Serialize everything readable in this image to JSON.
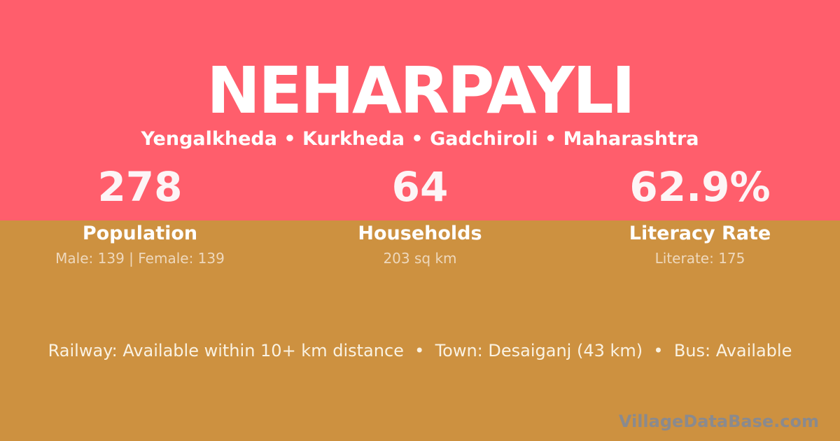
{
  "theme": {
    "top_band_color": "#ff5e6c",
    "bottom_band_color": "#cd9140",
    "title_color": "#ffffff",
    "number_color": "#fdf5f6",
    "label_color": "#fefefe",
    "muted_color": "rgba(255,255,255,0.65)",
    "footer_color": "#faf2e2",
    "watermark_color": "#8a8a8e"
  },
  "header": {
    "village_name": "NEHARPAYLI",
    "location_line": "Yengalkheda • Kurkheda • Gadchiroli • Maharashtra"
  },
  "stats": [
    {
      "value": "278",
      "label": "Population",
      "detail": "Male: 139 | Female: 139"
    },
    {
      "value": "64",
      "label": "Households",
      "detail": "203 sq km"
    },
    {
      "value": "62.9%",
      "label": "Literacy Rate",
      "detail": "Literate: 175"
    }
  ],
  "footer": {
    "transport_line": "Railway: Available within 10+ km distance  •  Town: Desaiganj (43 km)  •  Bus: Available",
    "watermark": "VillageDataBase.com"
  }
}
